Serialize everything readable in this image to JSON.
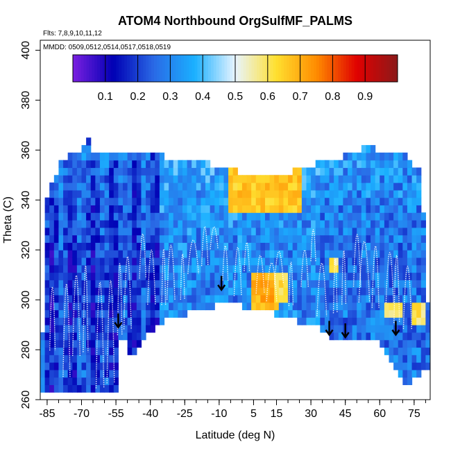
{
  "chart_data": {
    "type": "heatmap",
    "title": "ATOM4 Northbound OrgSulfMF_PALMS",
    "flights_note": "Flts: 7,8,9,10,11,12",
    "dates_note": "MMDD: 0509,0512,0514,0517,0518,0519",
    "xlabel": "Latitude (deg N)",
    "ylabel": "Theta (C)",
    "xlim": [
      -88,
      82
    ],
    "ylim": [
      260,
      404
    ],
    "x_ticks": [
      -85,
      -70,
      -55,
      -40,
      -25,
      -10,
      5,
      15,
      30,
      45,
      60,
      75
    ],
    "y_ticks": [
      260,
      280,
      300,
      320,
      340,
      360,
      380,
      400
    ],
    "colorbar": {
      "range": [
        0,
        1
      ],
      "tick_labels": [
        "0.1",
        "0.2",
        "0.3",
        "0.4",
        "0.5",
        "0.6",
        "0.7",
        "0.8",
        "0.9"
      ],
      "colors": [
        "#7a1fe0",
        "#0000b4",
        "#2a6ae6",
        "#1ab0ff",
        "#e8f4ff",
        "#ffe030",
        "#ff8c00",
        "#e00000",
        "#8b1a1a"
      ]
    },
    "surface_boundary": [
      [
        -88,
        262
      ],
      [
        -55,
        262
      ],
      [
        -55,
        278
      ],
      [
        -52,
        286
      ],
      [
        -50,
        282
      ],
      [
        -48,
        275
      ],
      [
        -45,
        282
      ],
      [
        -42,
        285
      ],
      [
        -35,
        291
      ],
      [
        -25,
        294
      ],
      [
        -15,
        297
      ],
      [
        -10,
        298
      ],
      [
        -5,
        298
      ],
      [
        5,
        297
      ],
      [
        15,
        294
      ],
      [
        25,
        291
      ],
      [
        35,
        288
      ],
      [
        40,
        284
      ],
      [
        45,
        283
      ],
      [
        50,
        284
      ],
      [
        55,
        285
      ],
      [
        60,
        282
      ],
      [
        65,
        276
      ],
      [
        70,
        266
      ],
      [
        75,
        268
      ],
      [
        80,
        272
      ],
      [
        82,
        272
      ]
    ],
    "upper_boundary": [
      [
        -88,
        260
      ],
      [
        -85,
        340
      ],
      [
        -80,
        354
      ],
      [
        -75,
        358
      ],
      [
        -70,
        361
      ],
      [
        -67,
        365
      ],
      [
        -65,
        360
      ],
      [
        -55,
        360
      ],
      [
        -40,
        358
      ],
      [
        -20,
        356
      ],
      [
        -5,
        352
      ],
      [
        10,
        349
      ],
      [
        20,
        351
      ],
      [
        30,
        354
      ],
      [
        45,
        358
      ],
      [
        55,
        362
      ],
      [
        65,
        358
      ],
      [
        70,
        360
      ],
      [
        75,
        353
      ],
      [
        78,
        353
      ],
      [
        82,
        280
      ]
    ],
    "arrows": [
      {
        "lat": -54,
        "theta": 289
      },
      {
        "lat": -9,
        "theta": 304
      },
      {
        "lat": 38,
        "theta": 286
      },
      {
        "lat": 45,
        "theta": 285
      },
      {
        "lat": 67,
        "theta": 286
      }
    ],
    "enhanced_regions": [
      {
        "lat": [
          -5,
          25
        ],
        "theta": [
          336,
          352
        ],
        "value": 0.66
      },
      {
        "lat": [
          5,
          15
        ],
        "theta": [
          296,
          312
        ],
        "value": 0.7
      },
      {
        "lat": [
          15,
          20
        ],
        "theta": [
          300,
          312
        ],
        "value": 0.62
      },
      {
        "lat": [
          38,
          42
        ],
        "theta": [
          312,
          318
        ],
        "value": 0.58
      },
      {
        "lat": [
          62,
          70
        ],
        "theta": [
          292,
          300
        ],
        "value": 0.6
      },
      {
        "lat": [
          75,
          79
        ],
        "theta": [
          290,
          300
        ],
        "value": 0.6
      }
    ]
  }
}
